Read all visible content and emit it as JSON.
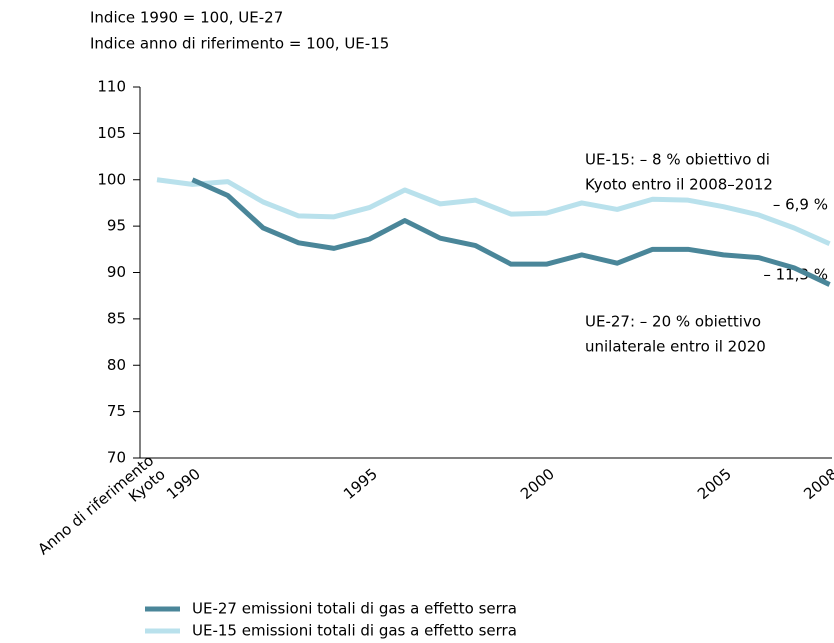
{
  "chart_data": {
    "type": "line",
    "y_label": [
      "Indice 1990 = 100, UE-27",
      "Indice anno di riferimento = 100, UE-15"
    ],
    "categories": [
      "Anno di riferimento\nKyoto",
      "1990",
      null,
      null,
      null,
      null,
      "1995",
      null,
      null,
      null,
      null,
      "2000",
      null,
      null,
      null,
      null,
      "2005",
      null,
      null,
      "2008"
    ],
    "series": [
      {
        "name": "UE-27 emissioni totali di gas a effetto serra",
        "color": "#4a8699",
        "values": [
          null,
          100,
          98.3,
          94.8,
          93.2,
          92.6,
          93.6,
          95.6,
          93.7,
          92.9,
          90.9,
          90.9,
          91.9,
          91.0,
          92.5,
          92.5,
          91.9,
          91.6,
          90.5,
          88.7
        ]
      },
      {
        "name": "UE-15 emissioni totali di gas a effetto serra",
        "color": "#b9e1ec",
        "values": [
          100,
          99.5,
          99.8,
          97.6,
          96.1,
          96.0,
          97.0,
          98.9,
          97.4,
          97.8,
          96.3,
          96.4,
          97.5,
          96.8,
          97.9,
          97.8,
          97.1,
          96.2,
          94.8,
          93.1
        ]
      }
    ],
    "annotations": [
      "UE-15: – 8 % obiettivo di",
      "Kyoto entro il 2008–2012",
      "– 6,9 %",
      "– 11,3 %",
      "UE-27: – 20 % obiettivo",
      "unilaterale entro il 2020"
    ],
    "ylim": [
      70,
      110
    ],
    "yticks": [
      70,
      75,
      80,
      85,
      90,
      95,
      100,
      105,
      110
    ],
    "grid": false
  }
}
